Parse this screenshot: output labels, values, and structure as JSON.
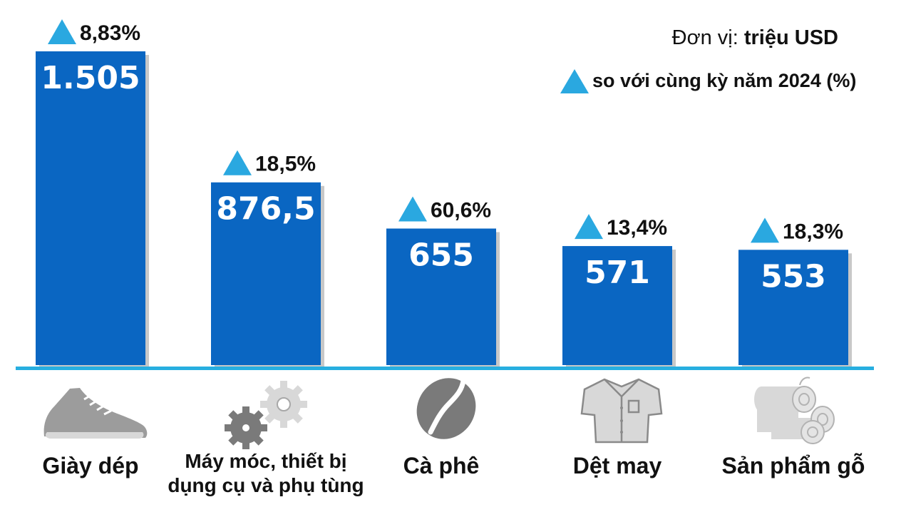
{
  "chart_data": {
    "type": "bar",
    "unit_label": "Đơn vị: ",
    "unit_value": "triệu USD",
    "legend_label": "so với cùng kỳ năm 2024 (%)",
    "categories": [
      "Giày dép",
      "Máy móc, thiết bị dụng cụ và phụ tùng",
      "Cà phê",
      "Dệt may",
      "Sản phẩm gỗ"
    ],
    "category_lines": [
      [
        "Giày dép"
      ],
      [
        "Máy móc, thiết bị",
        "dụng cụ và phụ tùng"
      ],
      [
        "Cà phê"
      ],
      [
        "Dệt may"
      ],
      [
        "Sản phẩm gỗ"
      ]
    ],
    "values": [
      1505,
      876.5,
      655,
      571,
      553
    ],
    "value_labels": [
      "1.505",
      "876,5",
      "655",
      "571",
      "553"
    ],
    "growth_labels": [
      "8,83%",
      "18,5%",
      "60,6%",
      "13,4%",
      "18,3%"
    ],
    "icons": [
      "shoe-icon",
      "gears-icon",
      "coffee-bean-icon",
      "shirt-icon",
      "logs-icon"
    ],
    "ylim": [
      0,
      1505
    ],
    "colors": {
      "bar": "#0a66c2",
      "baseline": "#27aee0",
      "triangle": "#2aa8e0"
    }
  }
}
